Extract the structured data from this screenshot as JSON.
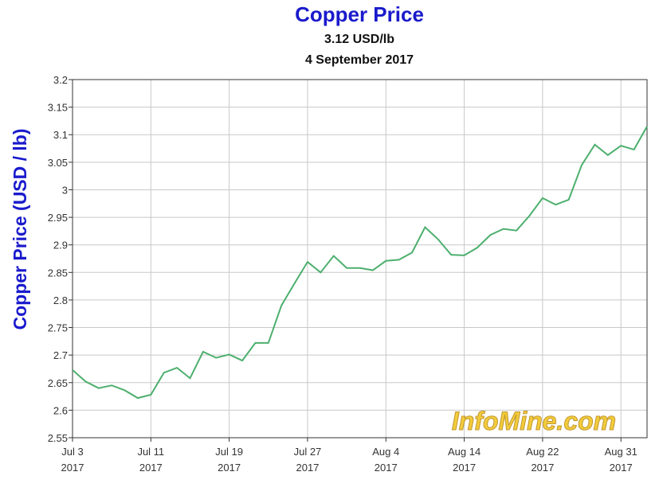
{
  "chart_data": {
    "type": "line",
    "title": "Copper Price",
    "subtitle": [
      "3.12 USD/lb",
      "4 September 2017"
    ],
    "ylabel": "Copper Price (USD / lb)",
    "watermark": "InfoMine.com",
    "categories": [
      [
        "Jul 3",
        "2017"
      ],
      null,
      null,
      null,
      null,
      null,
      [
        "Jul 11",
        "2017"
      ],
      null,
      null,
      null,
      null,
      null,
      [
        "Jul 19",
        "2017"
      ],
      null,
      null,
      null,
      null,
      null,
      [
        "Jul 27",
        "2017"
      ],
      null,
      null,
      null,
      null,
      null,
      [
        "Aug 4",
        "2017"
      ],
      null,
      null,
      null,
      null,
      null,
      [
        "Aug 14",
        "2017"
      ],
      null,
      null,
      null,
      null,
      null,
      [
        "Aug 22",
        "2017"
      ],
      null,
      null,
      null,
      null,
      null,
      [
        "Aug 31",
        "2017"
      ],
      null,
      null
    ],
    "series": [
      {
        "name": "Copper Price",
        "color": "#4daf6e",
        "values": [
          2.673,
          2.652,
          2.64,
          2.645,
          2.636,
          2.622,
          2.628,
          2.668,
          2.677,
          2.658,
          2.706,
          2.695,
          2.701,
          2.69,
          2.722,
          2.722,
          2.79,
          2.83,
          2.869,
          2.85,
          2.88,
          2.858,
          2.858,
          2.854,
          2.871,
          2.873,
          2.886,
          2.932,
          2.91,
          2.882,
          2.881,
          2.895,
          2.918,
          2.929,
          2.926,
          2.953,
          2.985,
          2.973,
          2.982,
          3.045,
          3.082,
          3.063,
          3.08,
          3.073,
          3.115
        ]
      }
    ],
    "ylim": [
      2.55,
      3.2
    ],
    "yticks": [
      2.55,
      2.6,
      2.65,
      2.7,
      2.75,
      2.8,
      2.85,
      2.9,
      2.95,
      3,
      3.05,
      3.1,
      3.15,
      3.2
    ],
    "grid": true
  }
}
